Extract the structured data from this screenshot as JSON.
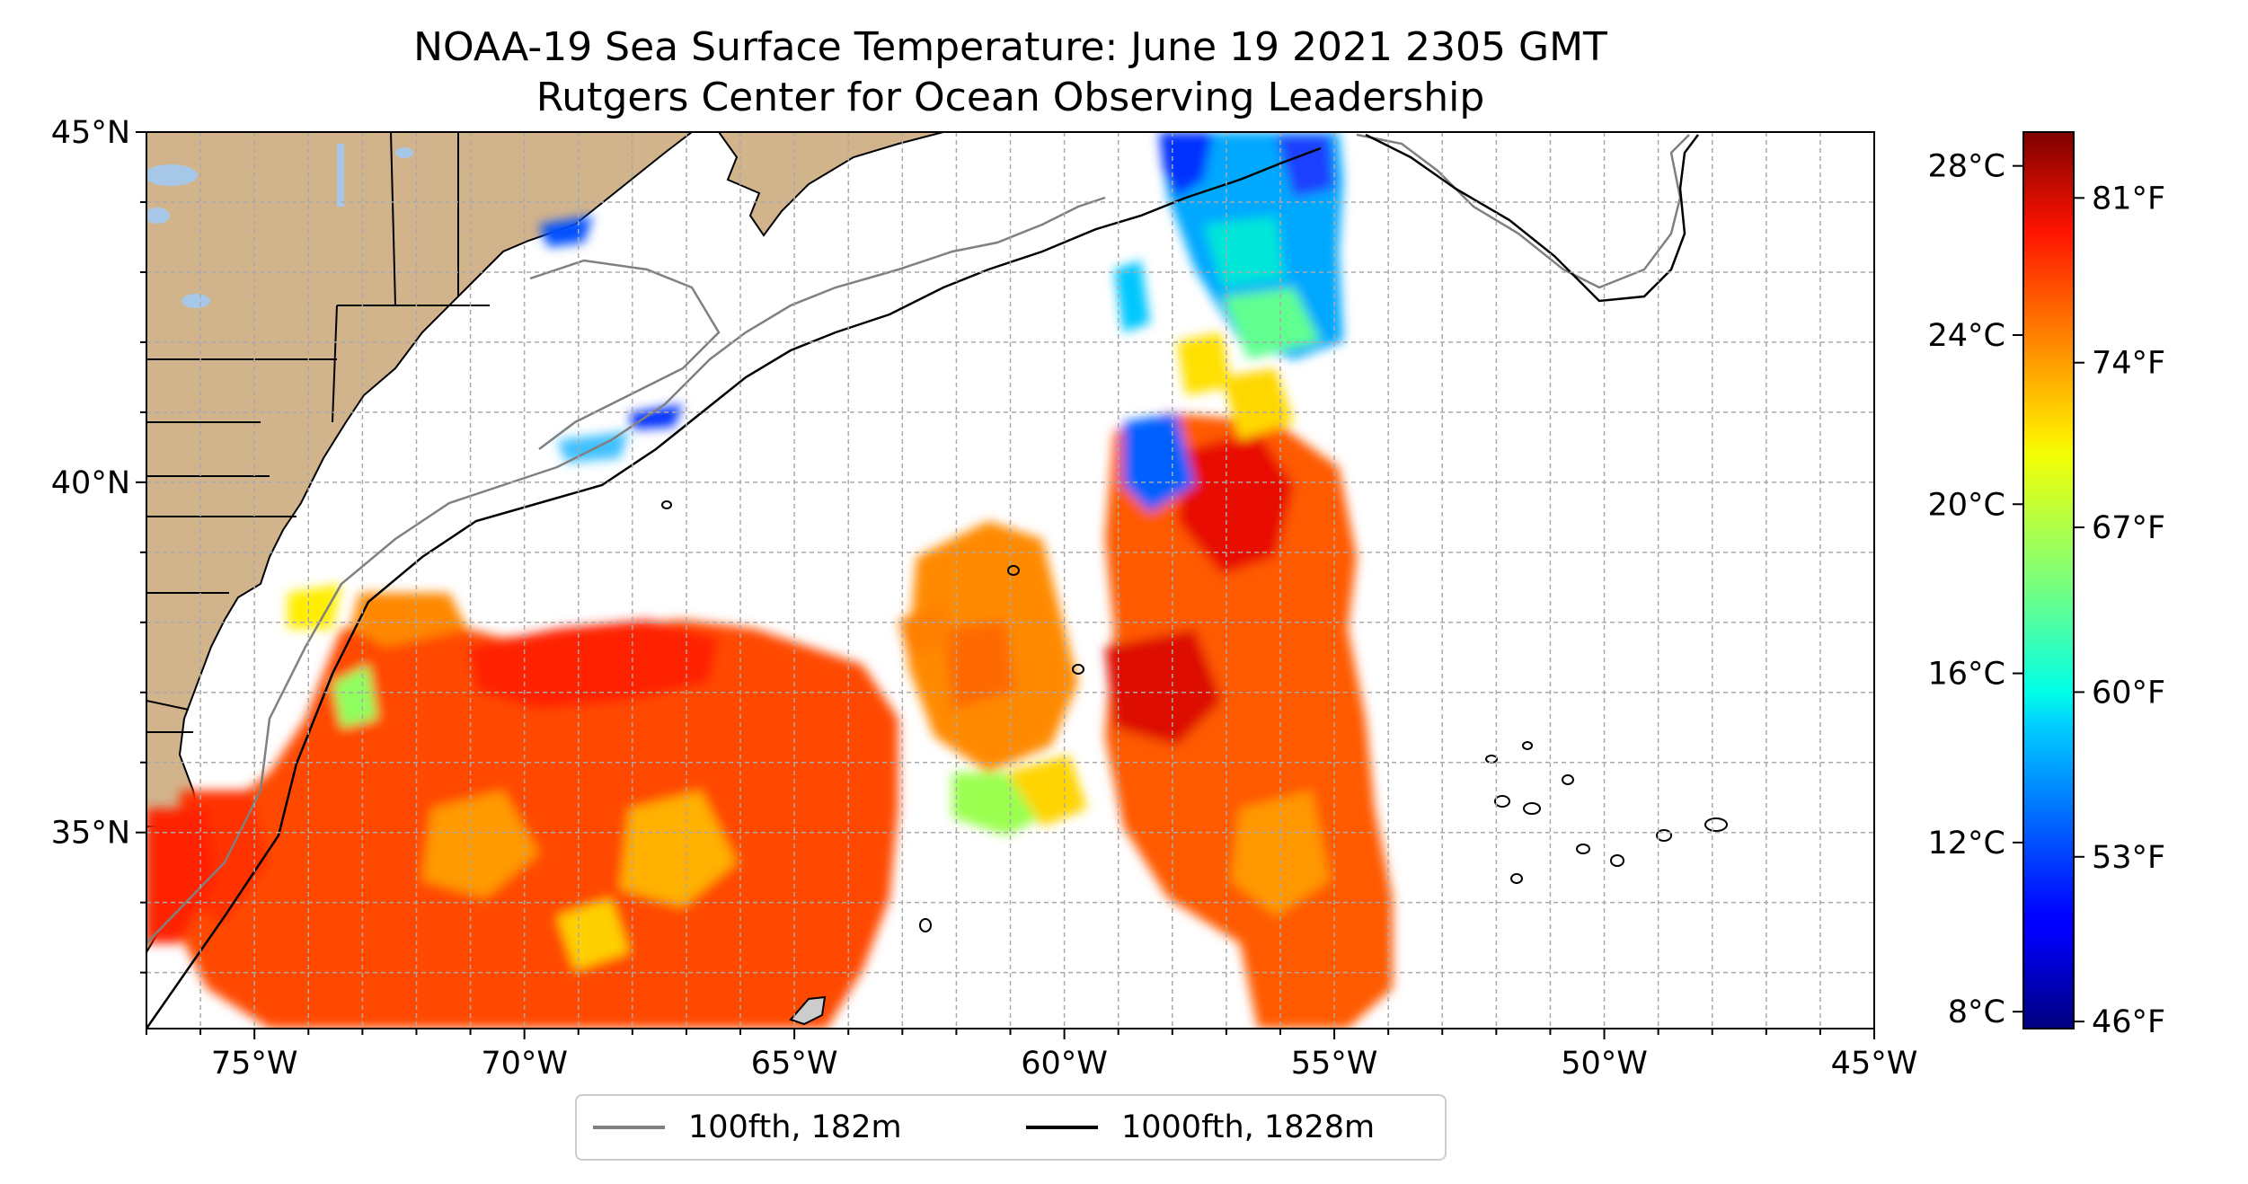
{
  "title_line1": "NOAA-19 Sea Surface Temperature: June 19 2021 2305 GMT",
  "title_line2": "Rutgers Center for Ocean Observing Leadership",
  "map": {
    "lon_range": [
      -77,
      -45
    ],
    "lat_range": [
      32.2,
      45
    ],
    "lon_ticks": [
      -75,
      -70,
      -65,
      -60,
      -55,
      -50,
      -45
    ],
    "lon_tick_labels": [
      "75°W",
      "70°W",
      "65°W",
      "60°W",
      "55°W",
      "50°W",
      "45°W"
    ],
    "lat_ticks": [
      35,
      40,
      45
    ],
    "lat_tick_labels": [
      "35°N",
      "40°N",
      "45°N"
    ],
    "gridlines": true,
    "land_color": "#d2b48c",
    "lakes_color": "#a6c7e8",
    "colormap": "jet"
  },
  "colorbar": {
    "celsius_labels": [
      "8°C",
      "12°C",
      "16°C",
      "20°C",
      "24°C",
      "28°C"
    ],
    "fahrenheit_labels": [
      "46°F",
      "53°F",
      "60°F",
      "67°F",
      "74°F",
      "81°F"
    ],
    "range_celsius": [
      7.6,
      28.8
    ],
    "range_fahrenheit": [
      45.7,
      83.8
    ]
  },
  "legend": {
    "items": [
      {
        "label": "100fth, 182m",
        "color": "#808080"
      },
      {
        "label": "1000fth, 1828m",
        "color": "#000000"
      }
    ]
  }
}
